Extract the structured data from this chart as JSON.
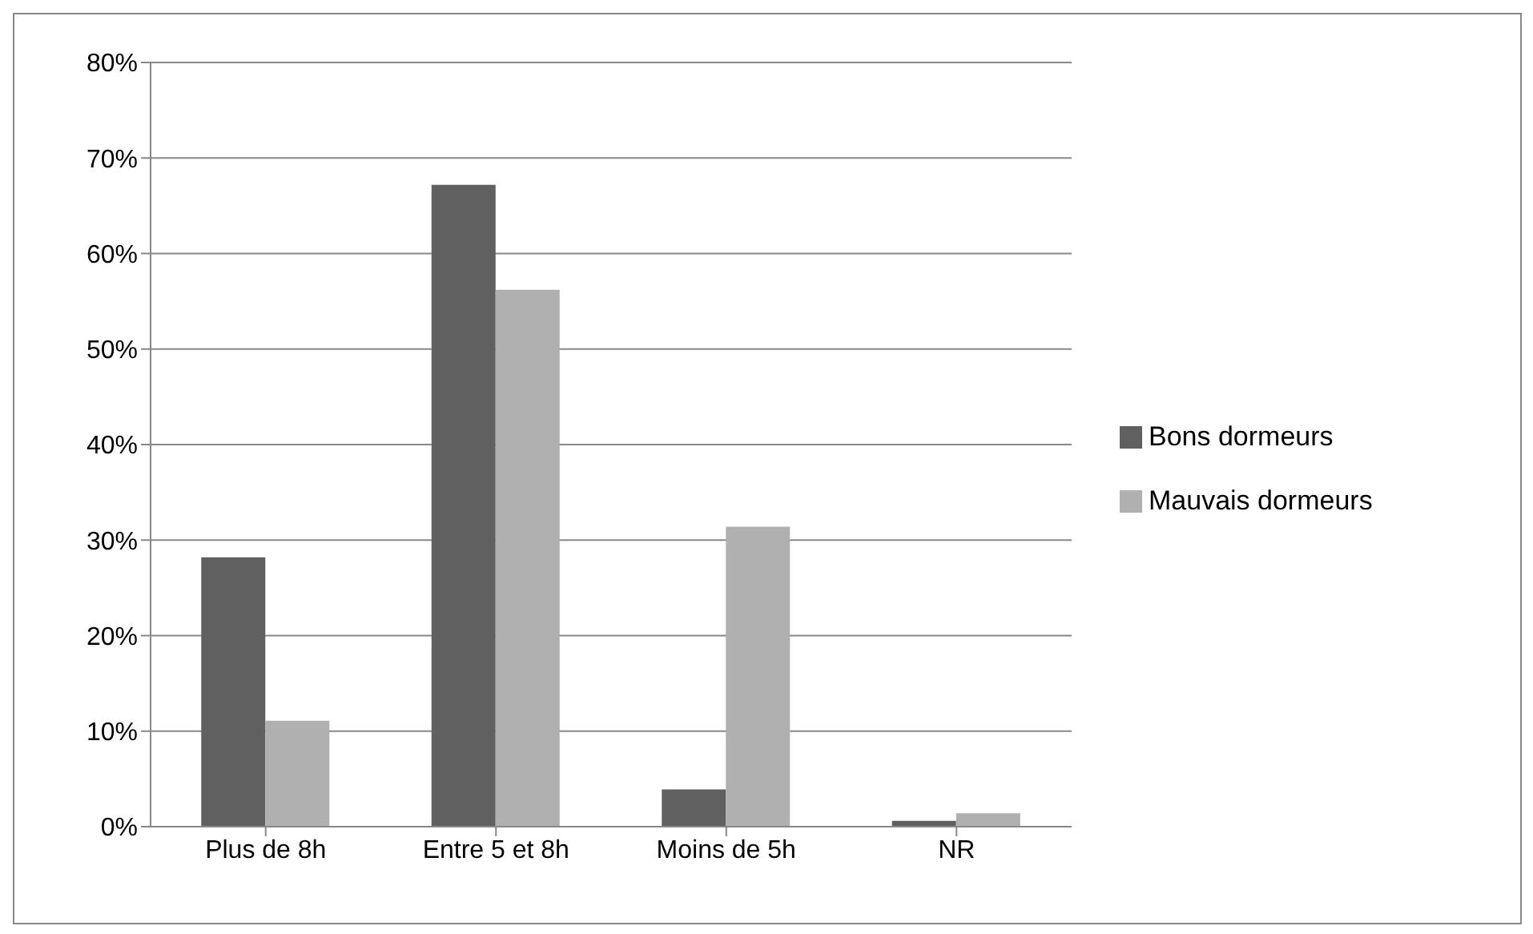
{
  "chart_data": {
    "type": "bar",
    "categories": [
      "Plus de 8h",
      "Entre 5 et 8h",
      "Moins de 5h",
      "NR"
    ],
    "series": [
      {
        "name": "Bons dormeurs",
        "color": "#606060",
        "values": [
          28.2,
          67.2,
          3.9,
          0.6
        ]
      },
      {
        "name": "Mauvais dormeurs",
        "color": "#b0b0b0",
        "values": [
          11.1,
          56.2,
          31.4,
          1.4
        ]
      }
    ],
    "ylim": [
      0,
      80
    ],
    "yticks": [
      {
        "value": 0,
        "label": "0%"
      },
      {
        "value": 10,
        "label": "10%"
      },
      {
        "value": 20,
        "label": "20%"
      },
      {
        "value": 30,
        "label": "30%"
      },
      {
        "value": 40,
        "label": "40%"
      },
      {
        "value": 50,
        "label": "50%"
      },
      {
        "value": 60,
        "label": "60%"
      },
      {
        "value": 70,
        "label": "70%"
      },
      {
        "value": 80,
        "label": "80%"
      }
    ],
    "grid": "y",
    "legend": "right"
  }
}
